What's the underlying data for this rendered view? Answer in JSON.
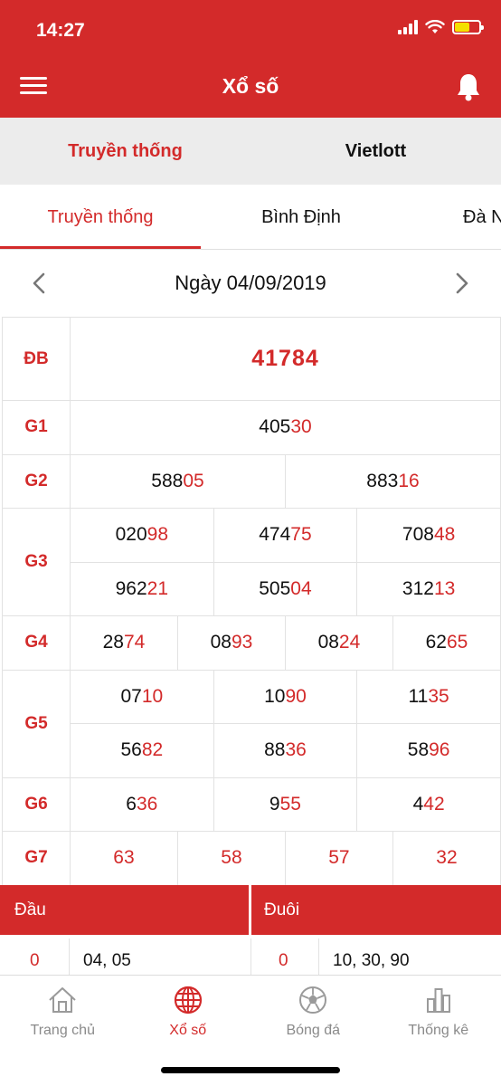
{
  "status_bar": {
    "time": "14:27"
  },
  "header": {
    "title": "Xổ số"
  },
  "top_tabs": [
    {
      "label": "Truyền thống",
      "active": true
    },
    {
      "label": "Vietlott",
      "active": false
    }
  ],
  "region_tabs": [
    {
      "label": "Truyền thống",
      "active": true
    },
    {
      "label": "Bình Định",
      "active": false
    },
    {
      "label": "Đà N",
      "active": false
    }
  ],
  "date": {
    "label": "Ngày 04/09/2019"
  },
  "results": {
    "db": {
      "label": "ĐB",
      "value": "41784"
    },
    "g1": {
      "label": "G1",
      "values": [
        {
          "head": "405",
          "tail": "30"
        }
      ]
    },
    "g2": {
      "label": "G2",
      "values": [
        {
          "head": "588",
          "tail": "05"
        },
        {
          "head": "883",
          "tail": "16"
        }
      ]
    },
    "g3": {
      "label": "G3",
      "values": [
        {
          "head": "020",
          "tail": "98"
        },
        {
          "head": "474",
          "tail": "75"
        },
        {
          "head": "708",
          "tail": "48"
        },
        {
          "head": "962",
          "tail": "21"
        },
        {
          "head": "505",
          "tail": "04"
        },
        {
          "head": "312",
          "tail": "13"
        }
      ]
    },
    "g4": {
      "label": "G4",
      "values": [
        {
          "head": "28",
          "tail": "74"
        },
        {
          "head": "08",
          "tail": "93"
        },
        {
          "head": "08",
          "tail": "24"
        },
        {
          "head": "62",
          "tail": "65"
        }
      ]
    },
    "g5": {
      "label": "G5",
      "values": [
        {
          "head": "07",
          "tail": "10"
        },
        {
          "head": "10",
          "tail": "90"
        },
        {
          "head": "11",
          "tail": "35"
        },
        {
          "head": "56",
          "tail": "82"
        },
        {
          "head": "88",
          "tail": "36"
        },
        {
          "head": "58",
          "tail": "96"
        }
      ]
    },
    "g6": {
      "label": "G6",
      "values": [
        {
          "head": "6",
          "tail": "36"
        },
        {
          "head": "9",
          "tail": "55"
        },
        {
          "head": "4",
          "tail": "42"
        }
      ]
    },
    "g7": {
      "label": "G7",
      "values": [
        "63",
        "58",
        "57",
        "32"
      ]
    }
  },
  "summary": {
    "head_label": "Đầu",
    "tail_label": "Đuôi",
    "rows": [
      {
        "head_digit": "0",
        "head_values": "04, 05",
        "tail_digit": "0",
        "tail_values": "10, 30, 90"
      }
    ]
  },
  "bottom_nav": [
    {
      "label": "Trang chủ",
      "icon": "home-icon",
      "active": false
    },
    {
      "label": "Xổ số",
      "icon": "globe-icon",
      "active": true
    },
    {
      "label": "Bóng đá",
      "icon": "soccer-ball-icon",
      "active": false
    },
    {
      "label": "Thống kê",
      "icon": "bar-chart-icon",
      "active": false
    }
  ],
  "colors": {
    "brand": "#d32a2a",
    "tab_bg": "#ececec",
    "nav_inactive": "#8a8a8a"
  }
}
